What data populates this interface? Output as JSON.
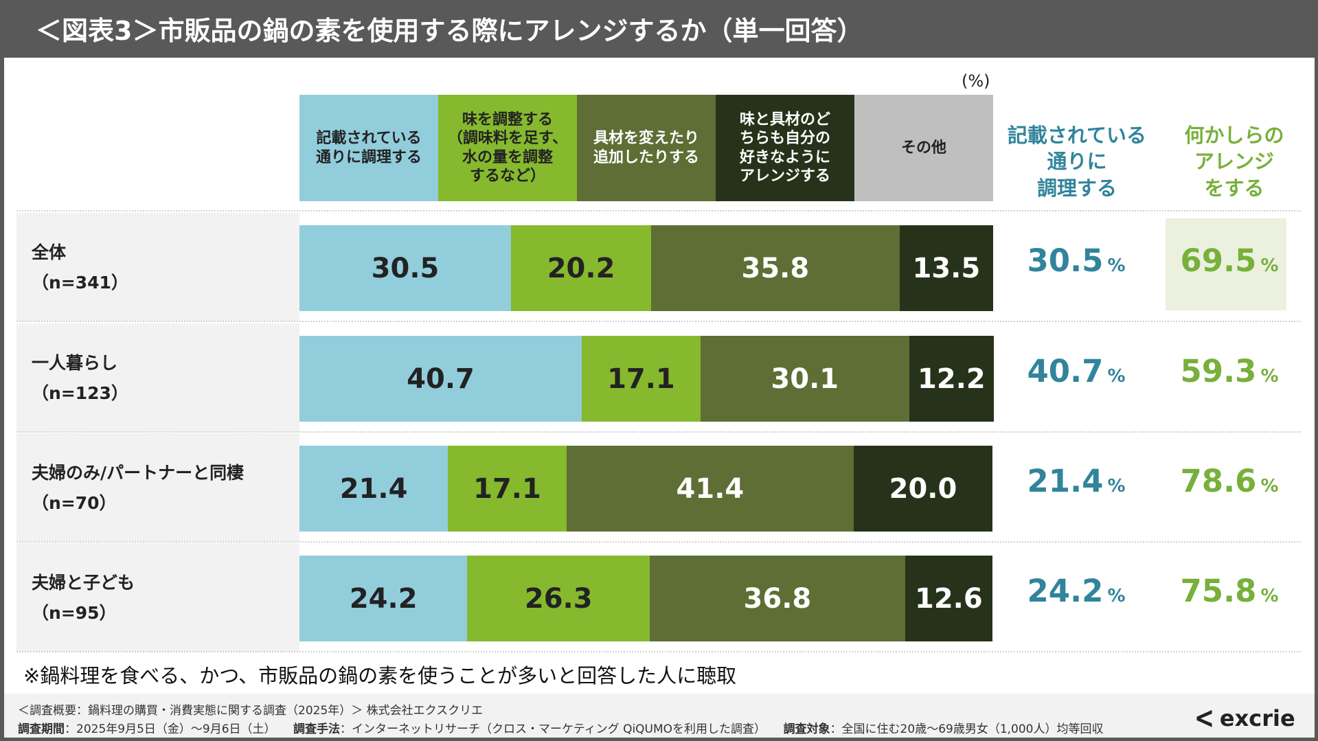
{
  "title": "＜図表3＞市販品の鍋の素を使用する際にアレンジするか（単一回答）",
  "unit": "(%)",
  "chart_data": {
    "type": "bar",
    "orientation": "horizontal-stacked-100",
    "series": [
      {
        "name": "記載されている\n通りに調理する",
        "color": "#92CDDC",
        "text": "#222222"
      },
      {
        "name": "味を調整する\n（調味料を足す、\n水の量を調整\nするなど）",
        "color": "#86B92E",
        "text": "#222222"
      },
      {
        "name": "具材を変えたり\n追加したりする",
        "color": "#5E6E35",
        "text": "#ffffff"
      },
      {
        "name": "味と具材のど\nちらも自分の\n好きなように\nアレンジする",
        "color": "#26331A",
        "text": "#ffffff"
      },
      {
        "name": "その他",
        "color": "#BFBFBF",
        "text": "#222222"
      }
    ],
    "rows": [
      {
        "label": "全体",
        "n": "（n=341）",
        "values": [
          30.5,
          20.2,
          35.8,
          13.5,
          0
        ],
        "as_written": "30.5",
        "arrange": "69.5"
      },
      {
        "label": "一人暮らし",
        "n": "（n=123）",
        "values": [
          40.7,
          17.1,
          30.1,
          12.2,
          0
        ],
        "as_written": "40.7",
        "arrange": "59.3"
      },
      {
        "label": "夫婦のみ/パートナーと同棲",
        "n": "（n=70）",
        "values": [
          21.4,
          17.1,
          41.4,
          20.0,
          0
        ],
        "as_written": "21.4",
        "arrange": "78.6"
      },
      {
        "label": "夫婦と子ども",
        "n": "（n=95）",
        "values": [
          24.2,
          26.3,
          36.8,
          12.6,
          0
        ],
        "as_written": "24.2",
        "arrange": "75.8"
      }
    ],
    "xlim": [
      0,
      100
    ]
  },
  "summary_headers": {
    "as_written": "記載されている\n通りに\n調理する",
    "arrange": "何かしらの\nアレンジ\nをする"
  },
  "pct_sign": "%",
  "colors": {
    "teal": "#31849B",
    "green": "#77B03A"
  },
  "note": "※鍋料理を食べる、かつ、市販品の鍋の素を使うことが多いと回答した人に聴取",
  "footer": {
    "line1": "＜調査概要：鍋料理の購買・消費実態に関する調査（2025年）＞ 株式会社エクスクリエ",
    "period_label": "調査期間",
    "period": "：2025年9月5日（金）～9月6日（土）",
    "method_label": "調査手法",
    "method": "：インターネットリサーチ（クロス・マーケティング QiQUMOを利用した調査）",
    "target_label": "調査対象",
    "target": "：全国に住む20歳～69歳男女（1,000人）均等回収",
    "logo": "excrie"
  }
}
